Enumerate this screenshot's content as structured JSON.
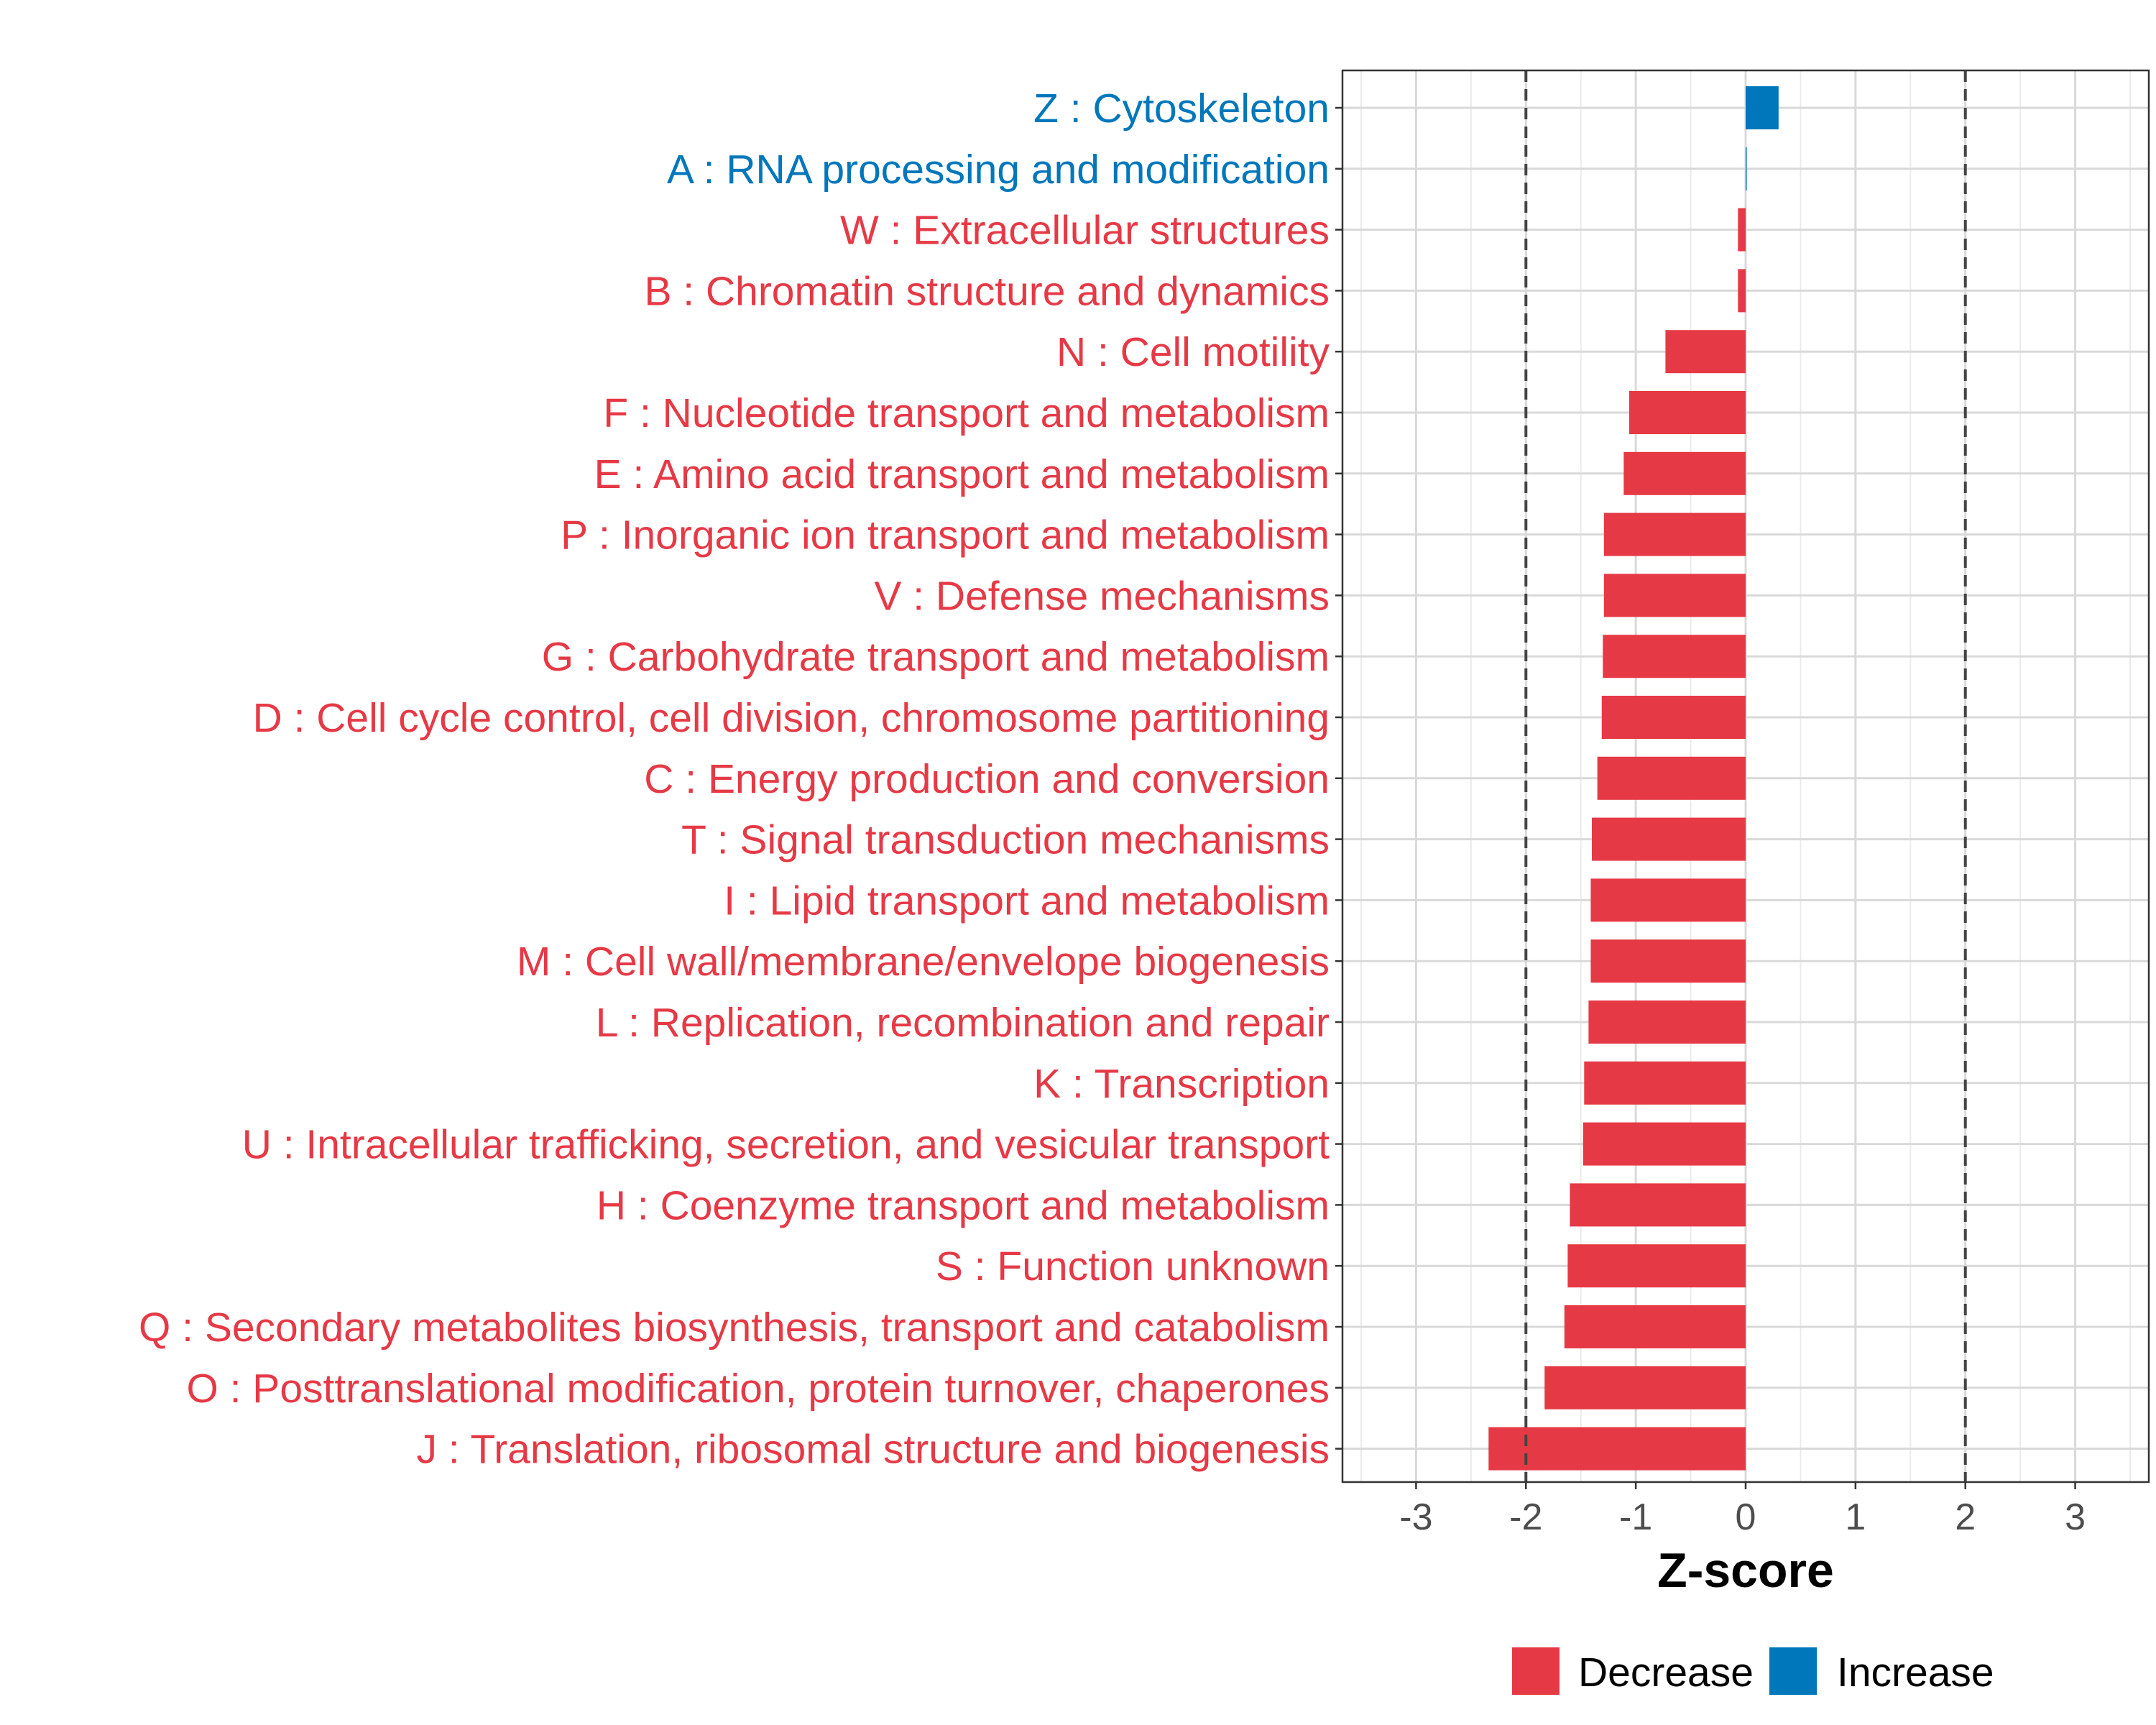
{
  "chart_data": {
    "type": "bar",
    "orientation": "horizontal",
    "categories": [
      "Z : Cytoskeleton",
      "A : RNA processing and modification",
      "W : Extracellular structures",
      "B : Chromatin structure and dynamics",
      "N : Cell motility",
      "F : Nucleotide transport and metabolism",
      "E : Amino acid transport and metabolism",
      "P : Inorganic ion transport and metabolism",
      "V : Defense mechanisms",
      "G : Carbohydrate transport and metabolism",
      "D : Cell cycle control, cell division, chromosome partitioning",
      "C : Energy production and conversion",
      "T : Signal transduction mechanisms",
      "I : Lipid transport and metabolism",
      "M : Cell wall/membrane/envelope biogenesis",
      "L : Replication, recombination and repair",
      "K : Transcription",
      "U : Intracellular trafficking, secretion, and vesicular transport",
      "H : Coenzyme transport and metabolism",
      "S : Function unknown",
      "Q : Secondary metabolites biosynthesis, transport and catabolism",
      "O : Posttranslational modification, protein turnover, chaperones",
      "J : Translation, ribosomal structure and biogenesis"
    ],
    "values": [
      0.3,
      0.01,
      -0.07,
      -0.07,
      -0.73,
      -1.06,
      -1.11,
      -1.29,
      -1.29,
      -1.3,
      -1.31,
      -1.35,
      -1.4,
      -1.41,
      -1.41,
      -1.43,
      -1.47,
      -1.48,
      -1.6,
      -1.62,
      -1.65,
      -1.83,
      -2.34
    ],
    "groups": [
      "Increase",
      "Increase",
      "Decrease",
      "Decrease",
      "Decrease",
      "Decrease",
      "Decrease",
      "Decrease",
      "Decrease",
      "Decrease",
      "Decrease",
      "Decrease",
      "Decrease",
      "Decrease",
      "Decrease",
      "Decrease",
      "Decrease",
      "Decrease",
      "Decrease",
      "Decrease",
      "Decrease",
      "Decrease",
      "Decrease"
    ],
    "xlabel": "Z-score",
    "ylabel": "",
    "xlim": [
      -3.67,
      3.67
    ],
    "xticks": [
      -3,
      -2,
      -1,
      0,
      1,
      2,
      3
    ],
    "xtick_labels": [
      "-3",
      "-2",
      "-1",
      "0",
      "1",
      "2",
      "3"
    ],
    "reference_lines": [
      -2,
      2
    ],
    "grid": true,
    "legend": {
      "position": "bottom",
      "entries": [
        {
          "label": "Decrease",
          "color": "#E63946"
        },
        {
          "label": "Increase",
          "color": "#0077BB"
        }
      ]
    },
    "colors": {
      "Decrease": "#E63946",
      "Increase": "#0077BB"
    }
  }
}
